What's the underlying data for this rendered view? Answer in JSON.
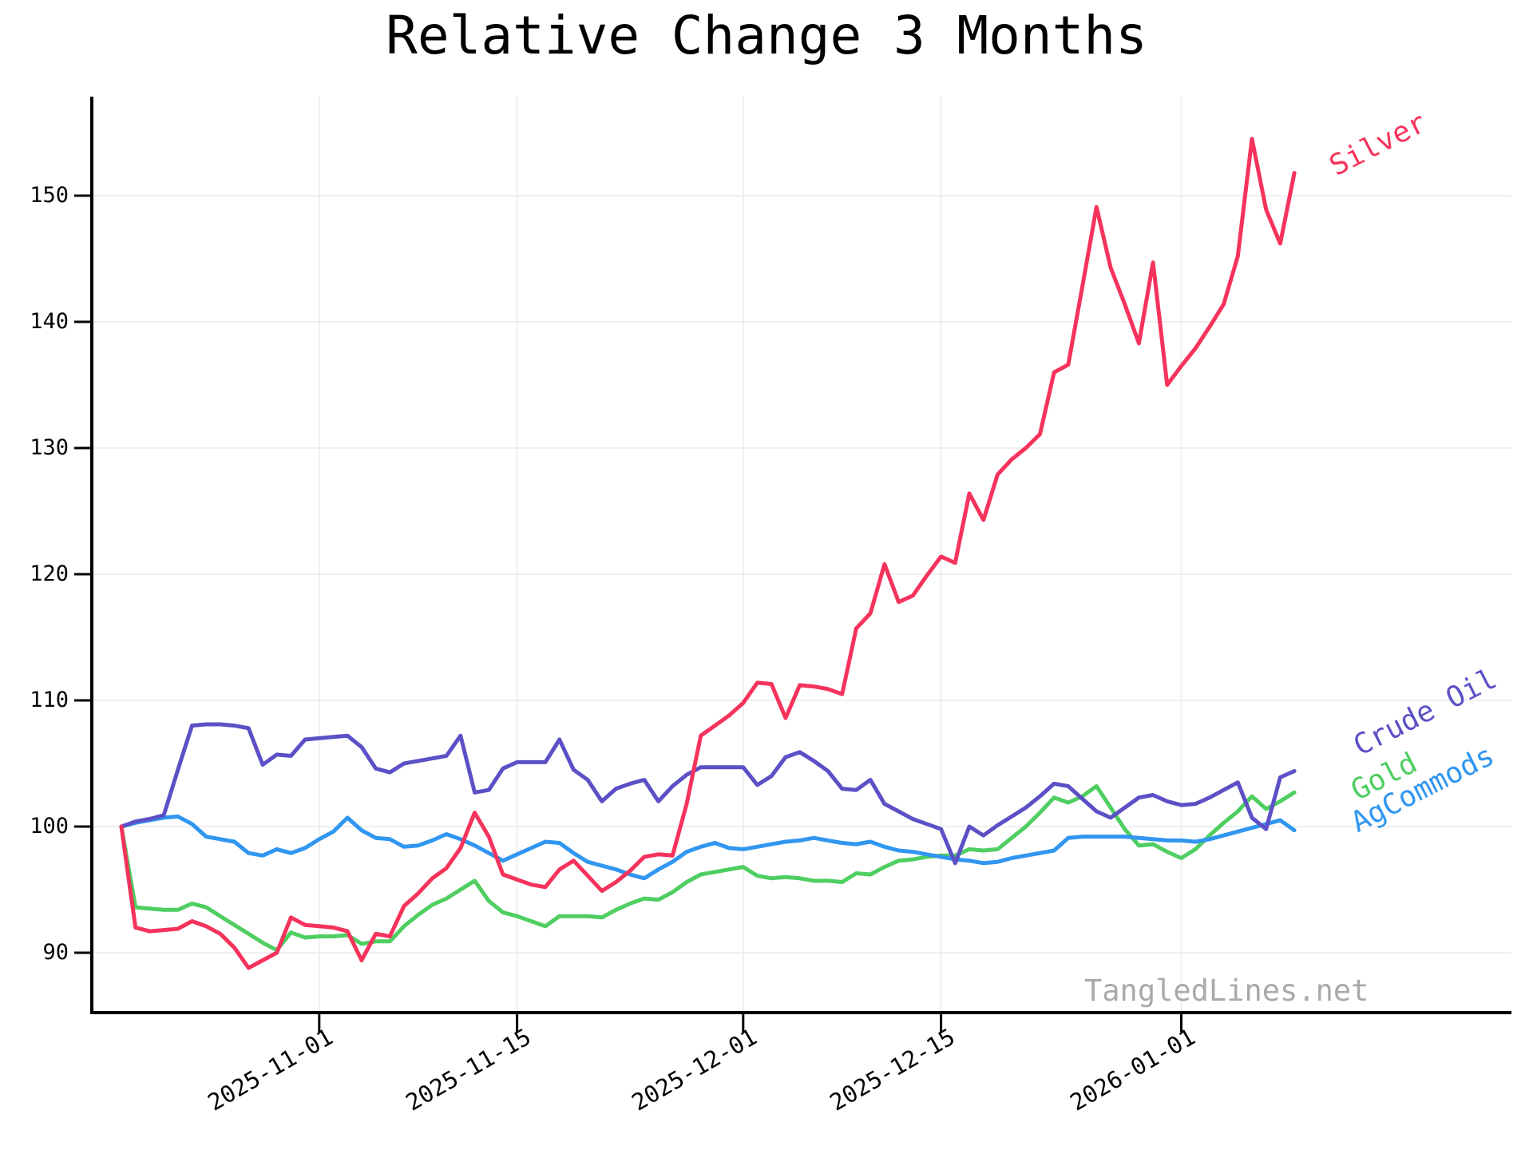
{
  "chart_data": {
    "type": "line",
    "title": "Relative Change 3 Months",
    "watermark": "TangledLines.net",
    "start_date": "2025-10-18",
    "end_date": "2026-01-09",
    "frequency": "daily",
    "grid": true,
    "ylim": [
      85.3,
      158.9
    ],
    "yticks": [
      90,
      100,
      110,
      120,
      130,
      140,
      150
    ],
    "xticks": [
      "2025-11-01",
      "2025-11-15",
      "2025-12-01",
      "2025-12-15",
      "2026-01-01"
    ],
    "legend_position": "end-of-line-labels-right",
    "series": [
      {
        "name": "Silver",
        "color": "#f5335c",
        "values": [
          100.0,
          92.0,
          91.7,
          91.8,
          91.9,
          92.5,
          92.1,
          91.5,
          90.4,
          88.8,
          89.4,
          90.0,
          92.8,
          92.2,
          92.1,
          92.0,
          91.7,
          89.4,
          91.5,
          91.3,
          93.7,
          94.7,
          95.9,
          96.7,
          98.3,
          101.1,
          99.2,
          96.2,
          95.8,
          95.4,
          95.2,
          96.6,
          97.3,
          96.1,
          94.9,
          95.6,
          96.5,
          97.6,
          97.8,
          97.7,
          101.8,
          107.2,
          108.0,
          108.8,
          109.8,
          111.4,
          111.3,
          108.6,
          111.2,
          111.1,
          110.9,
          110.5,
          115.7,
          116.9,
          120.8,
          117.8,
          118.3,
          119.9,
          121.4,
          120.9,
          126.4,
          124.3,
          127.9,
          129.1,
          130.0,
          131.1,
          136.0,
          136.6,
          142.8,
          149.1,
          144.3,
          141.4,
          138.3,
          144.7,
          135.0,
          136.5,
          137.9,
          139.6,
          141.4,
          145.2,
          154.5,
          148.9,
          146.2,
          151.8
        ]
      },
      {
        "name": "Crude Oil",
        "color": "#5c50c6",
        "values": [
          100.0,
          100.4,
          100.6,
          100.9,
          104.5,
          108.0,
          108.1,
          108.1,
          108.0,
          107.8,
          104.9,
          105.7,
          105.6,
          106.9,
          107.0,
          107.1,
          107.2,
          106.3,
          104.6,
          104.3,
          105.0,
          105.2,
          105.4,
          105.6,
          107.2,
          102.7,
          102.9,
          104.6,
          105.1,
          105.1,
          105.1,
          106.9,
          104.5,
          103.7,
          102.0,
          103.0,
          103.4,
          103.7,
          102.0,
          103.2,
          104.1,
          104.7,
          104.7,
          104.7,
          104.7,
          103.3,
          104.0,
          105.5,
          105.9,
          105.2,
          104.4,
          103.0,
          102.9,
          103.7,
          101.8,
          101.2,
          100.6,
          100.2,
          99.8,
          97.1,
          100.0,
          99.3,
          100.1,
          100.8,
          101.5,
          102.4,
          103.4,
          103.2,
          102.2,
          101.2,
          100.7,
          101.5,
          102.3,
          102.5,
          102.0,
          101.7,
          101.8,
          102.3,
          102.9,
          103.5,
          100.7,
          99.8,
          103.9,
          104.4
        ]
      },
      {
        "name": "Gold",
        "color": "#4fce61",
        "values": [
          100.0,
          93.6,
          93.5,
          93.4,
          93.4,
          93.9,
          93.6,
          92.9,
          92.2,
          91.5,
          90.8,
          90.2,
          91.6,
          91.2,
          91.3,
          91.3,
          91.4,
          90.7,
          90.9,
          90.9,
          92.1,
          93.0,
          93.8,
          94.3,
          95.0,
          95.7,
          94.1,
          93.2,
          92.9,
          92.5,
          92.1,
          92.9,
          92.9,
          92.9,
          92.8,
          93.4,
          93.9,
          94.3,
          94.2,
          94.8,
          95.6,
          96.2,
          96.4,
          96.6,
          96.8,
          96.1,
          95.9,
          96.0,
          95.9,
          95.7,
          95.7,
          95.6,
          96.3,
          96.2,
          96.8,
          97.3,
          97.4,
          97.6,
          97.7,
          97.7,
          98.2,
          98.1,
          98.2,
          99.1,
          100.0,
          101.1,
          102.3,
          101.9,
          102.4,
          103.2,
          101.5,
          99.8,
          98.5,
          98.6,
          98.0,
          97.5,
          98.2,
          99.3,
          100.3,
          101.2,
          102.4,
          101.4,
          102.0,
          102.7
        ]
      },
      {
        "name": "AgCommods",
        "color": "#3096f0",
        "values": [
          100.0,
          100.3,
          100.5,
          100.7,
          100.8,
          100.2,
          99.2,
          99.0,
          98.8,
          97.9,
          97.7,
          98.2,
          97.9,
          98.3,
          99.0,
          99.6,
          100.7,
          99.7,
          99.1,
          99.0,
          98.4,
          98.5,
          98.9,
          99.4,
          99.0,
          98.5,
          97.9,
          97.3,
          97.8,
          98.3,
          98.8,
          98.7,
          97.9,
          97.2,
          96.9,
          96.6,
          96.2,
          95.9,
          96.6,
          97.2,
          98.0,
          98.4,
          98.7,
          98.3,
          98.2,
          98.4,
          98.6,
          98.8,
          98.9,
          99.1,
          98.9,
          98.7,
          98.6,
          98.8,
          98.4,
          98.1,
          98.0,
          97.8,
          97.6,
          97.4,
          97.3,
          97.1,
          97.2,
          97.5,
          97.7,
          97.9,
          98.1,
          99.1,
          99.2,
          99.2,
          99.2,
          99.2,
          99.1,
          99.0,
          98.9,
          98.9,
          98.8,
          99.0,
          99.3,
          99.6,
          99.9,
          100.2,
          100.5,
          99.7
        ]
      }
    ]
  }
}
